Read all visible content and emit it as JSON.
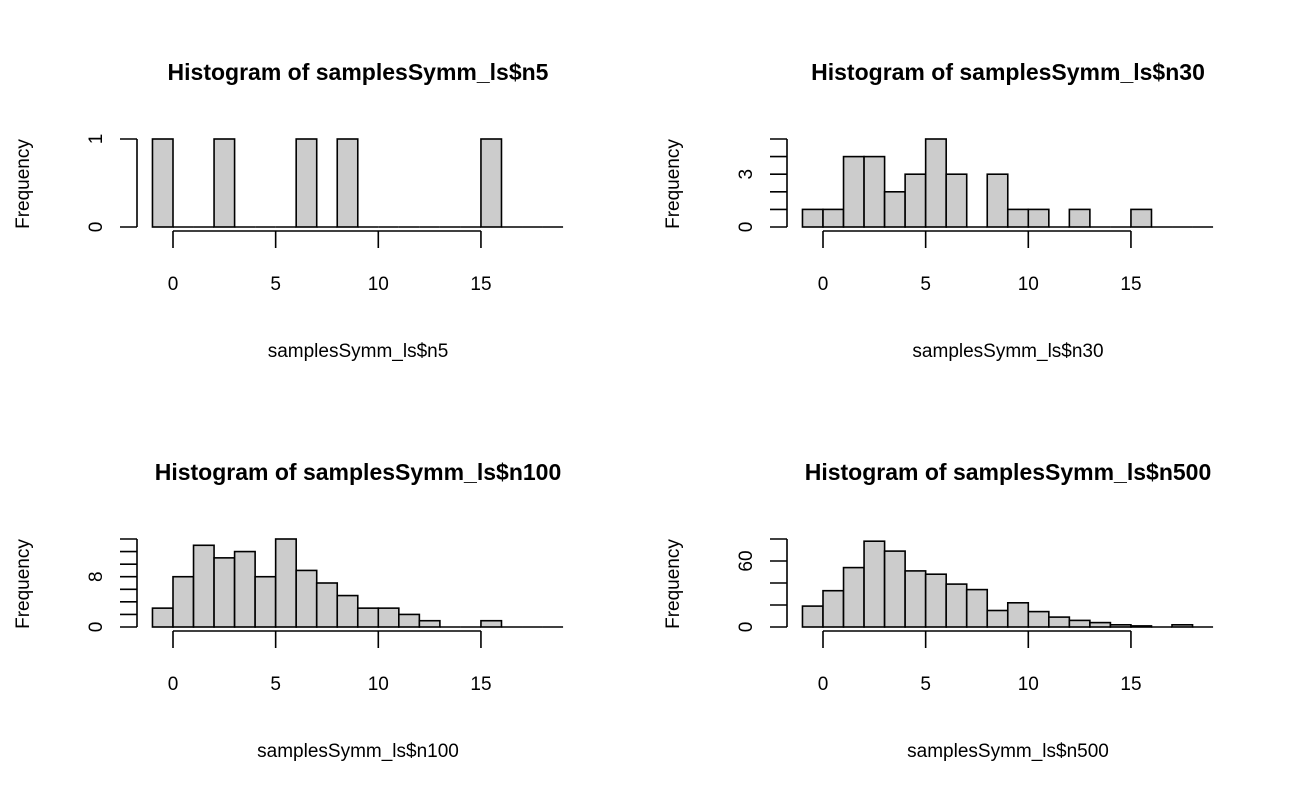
{
  "chart_data": [
    {
      "type": "bar",
      "title": "Histogram of samplesSymm_ls$n5",
      "xlabel": "samplesSymm_ls$n5",
      "ylabel": "Frequency",
      "bin_edges": [
        -1,
        0,
        1,
        2,
        3,
        4,
        5,
        6,
        7,
        8,
        9,
        10,
        11,
        12,
        13,
        14,
        15,
        16,
        17,
        18,
        19
      ],
      "values": [
        1,
        0,
        0,
        1,
        0,
        0,
        0,
        1,
        0,
        1,
        0,
        0,
        0,
        0,
        0,
        0,
        1,
        0,
        0,
        0
      ],
      "xlim": [
        -1,
        19
      ],
      "ylim": [
        0,
        1
      ],
      "xticks": [
        0,
        5,
        10,
        15
      ],
      "yticks": [
        0,
        1
      ],
      "ytick_labels": [
        "0",
        "1"
      ],
      "bar_color": "#cccccc"
    },
    {
      "type": "bar",
      "title": "Histogram of samplesSymm_ls$n30",
      "xlabel": "samplesSymm_ls$n30",
      "ylabel": "Frequency",
      "bin_edges": [
        -1,
        0,
        1,
        2,
        3,
        4,
        5,
        6,
        7,
        8,
        9,
        10,
        11,
        12,
        13,
        14,
        15,
        16,
        17,
        18,
        19
      ],
      "values": [
        1,
        1,
        4,
        4,
        2,
        3,
        5,
        3,
        0,
        3,
        1,
        1,
        0,
        1,
        0,
        0,
        1,
        0,
        0,
        0
      ],
      "xlim": [
        -1,
        19
      ],
      "ylim": [
        0,
        5
      ],
      "xticks": [
        0,
        5,
        10,
        15
      ],
      "yticks": [
        0,
        1,
        2,
        3,
        4,
        5
      ],
      "ytick_labels": [
        "0",
        "",
        "",
        "3",
        "",
        ""
      ],
      "bar_color": "#cccccc"
    },
    {
      "type": "bar",
      "title": "Histogram of samplesSymm_ls$n100",
      "xlabel": "samplesSymm_ls$n100",
      "ylabel": "Frequency",
      "bin_edges": [
        -1,
        0,
        1,
        2,
        3,
        4,
        5,
        6,
        7,
        8,
        9,
        10,
        11,
        12,
        13,
        14,
        15,
        16,
        17,
        18,
        19
      ],
      "values": [
        3,
        8,
        13,
        11,
        12,
        8,
        14,
        9,
        7,
        5,
        3,
        3,
        2,
        1,
        0,
        0,
        1,
        0,
        0,
        0
      ],
      "xlim": [
        -1,
        19
      ],
      "ylim": [
        0,
        14
      ],
      "xticks": [
        0,
        5,
        10,
        15
      ],
      "yticks": [
        0,
        2,
        4,
        6,
        8,
        10,
        12,
        14
      ],
      "ytick_labels": [
        "0",
        "",
        "",
        "",
        "8",
        "",
        "",
        ""
      ],
      "bar_color": "#cccccc"
    },
    {
      "type": "bar",
      "title": "Histogram of samplesSymm_ls$n500",
      "xlabel": "samplesSymm_ls$n500",
      "ylabel": "Frequency",
      "bin_edges": [
        -1,
        0,
        1,
        2,
        3,
        4,
        5,
        6,
        7,
        8,
        9,
        10,
        11,
        12,
        13,
        14,
        15,
        16,
        17,
        18,
        19
      ],
      "values": [
        19,
        33,
        54,
        78,
        69,
        51,
        48,
        39,
        34,
        15,
        22,
        14,
        9,
        6,
        4,
        2,
        1,
        0,
        2,
        0
      ],
      "xlim": [
        -1,
        19
      ],
      "ylim": [
        0,
        80
      ],
      "xticks": [
        0,
        5,
        10,
        15
      ],
      "yticks": [
        0,
        20,
        40,
        60,
        80
      ],
      "ytick_labels": [
        "0",
        "",
        "",
        "60",
        ""
      ],
      "bar_color": "#cccccc"
    }
  ]
}
